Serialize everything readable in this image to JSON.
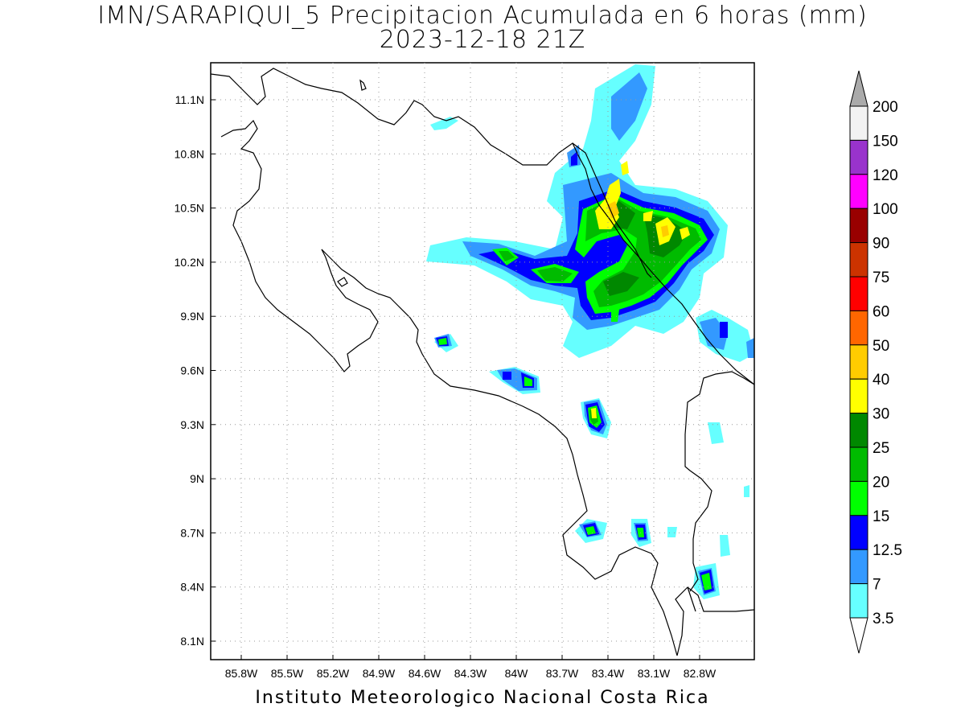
{
  "title": {
    "line1": "IMN/SARAPIQUI_5 Precipitacion Acumulada en 6 horas (mm)",
    "line2": "2023-12-18 21Z"
  },
  "credit": "Instituto Meteorologico Nacional Costa Rica",
  "map": {
    "lon_ticks": [
      "85.8W",
      "85.5W",
      "85.2W",
      "84.9W",
      "84.6W",
      "84.3W",
      "84W",
      "83.7W",
      "83.4W",
      "83.1W",
      "82.8W"
    ],
    "lat_ticks": [
      "11.1N",
      "10.8N",
      "10.5N",
      "10.2N",
      "9.9N",
      "9.6N",
      "9.3N",
      "9N",
      "8.7N",
      "8.4N",
      "8.1N"
    ],
    "grid": "dotted"
  },
  "colorbar": {
    "levels": [
      "200",
      "150",
      "120",
      "100",
      "90",
      "75",
      "60",
      "50",
      "40",
      "30",
      "25",
      "20",
      "15",
      "12.5",
      "7",
      "3.5"
    ],
    "colors": [
      "#ffffff",
      "#f2f2f2",
      "#9933cc",
      "#ff00ff",
      "#990000",
      "#cc3300",
      "#ff0000",
      "#ff6600",
      "#ffcc00",
      "#ffff00",
      "#008800",
      "#00bb00",
      "#00ff00",
      "#0000ff",
      "#3399ff",
      "#66ffff",
      "#ffffff"
    ],
    "over_color": "#aaaaaa"
  }
}
